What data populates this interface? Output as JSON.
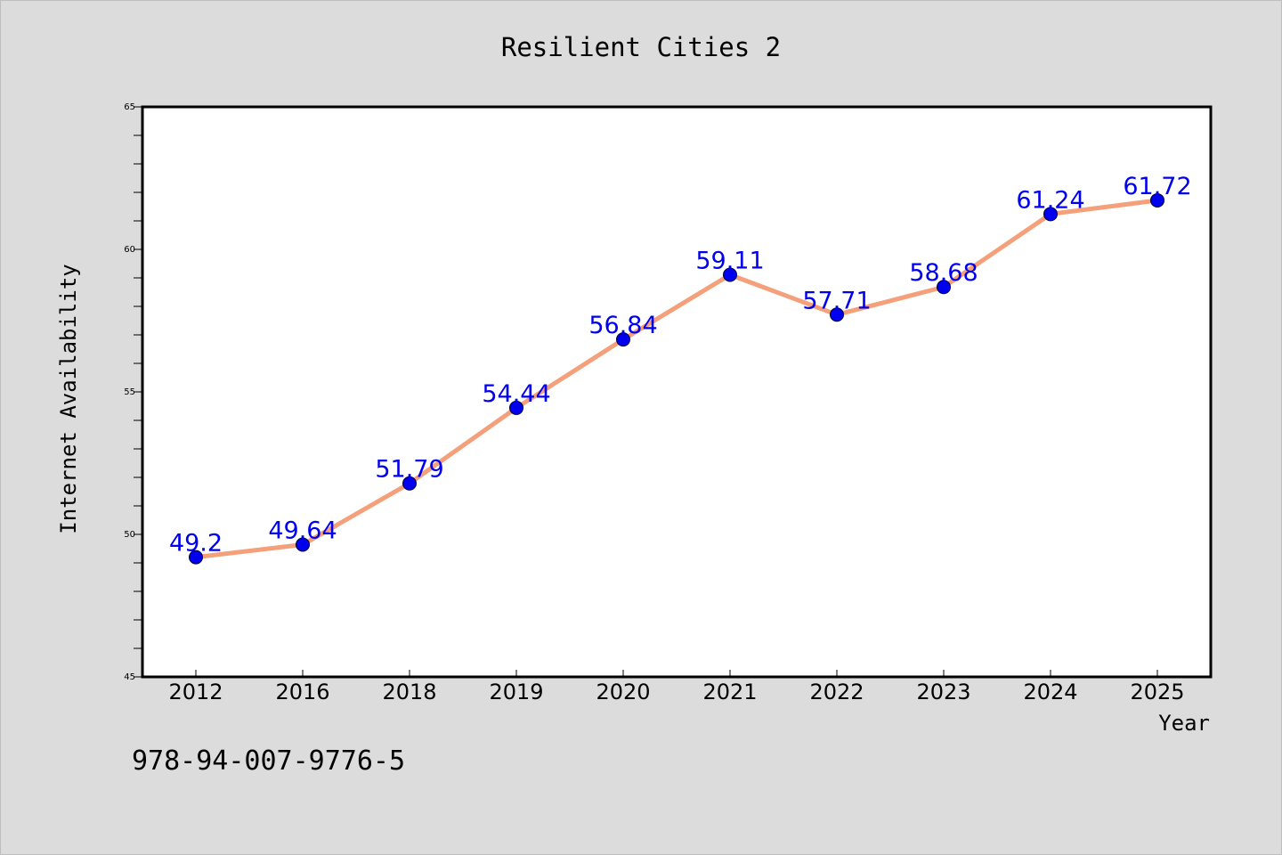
{
  "chart_data": {
    "type": "line",
    "title": "Resilient Cities 2",
    "xlabel": "Year",
    "ylabel": "Internet Availability",
    "categories": [
      "2012",
      "2016",
      "2018",
      "2019",
      "2020",
      "2021",
      "2022",
      "2023",
      "2024",
      "2025"
    ],
    "series": [
      {
        "values": [
          49.2,
          49.64,
          51.79,
          54.44,
          56.84,
          59.11,
          57.71,
          58.68,
          61.24,
          61.72
        ],
        "data_labels": [
          "49.2",
          "49.64",
          "51.79",
          "54.44",
          "56.84",
          "59.11",
          "57.71",
          "58.68",
          "61.24",
          "61.72"
        ],
        "line_color": "#f4a07a",
        "marker_color": "#0000ee"
      }
    ],
    "ylim": [
      45,
      65
    ],
    "yticks": [
      "45",
      "50",
      "55",
      "60",
      "65"
    ],
    "grid": false,
    "legend": "none"
  },
  "footer_code": "978-94-007-9776-5",
  "colors": {
    "background": "#dcdcdc",
    "plot_background": "#ffffff",
    "axis": "#000000",
    "label_text": "#0000ee"
  }
}
